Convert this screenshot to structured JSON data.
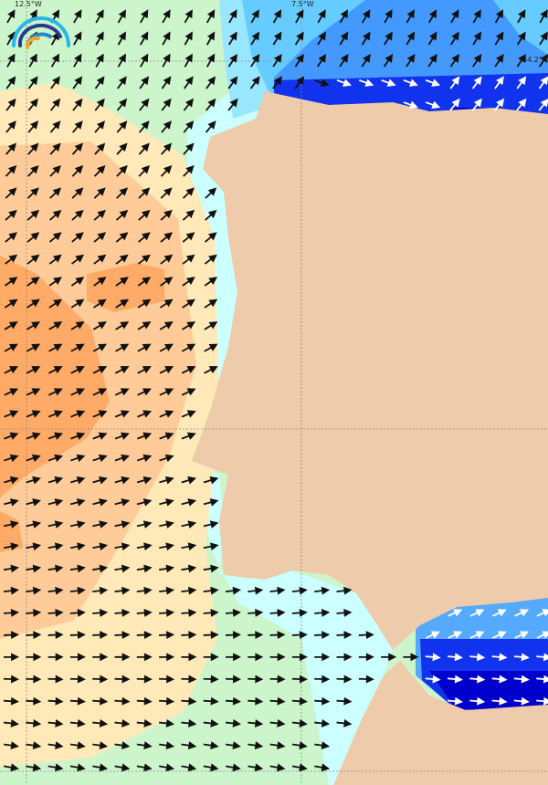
{
  "map": {
    "graticule_labels": {
      "lon_west": "12.5°W",
      "lon_east": "7.5°W",
      "lat_north": "44.2°N"
    },
    "logo": {
      "icon": "rainbow-arc-logo-icon"
    },
    "colors": {
      "land": "#eecbaa",
      "sea_lowest": "#ccf5cc",
      "sea_coastal": "#ccffff",
      "sea_pale_yellow": "#ffe9b8",
      "sea_light_orange": "#ffcc99",
      "sea_orange": "#ffaa66",
      "sea_light_blue": "#66ccff",
      "sea_blue": "#4499ff",
      "sea_dark_blue": "#1133ee",
      "sea_deep_blue": "#0000cc",
      "arrow": "#111111",
      "arrow_on_dark": "#ffffff"
    },
    "vector_field_icon": "direction-arrow-icon"
  }
}
